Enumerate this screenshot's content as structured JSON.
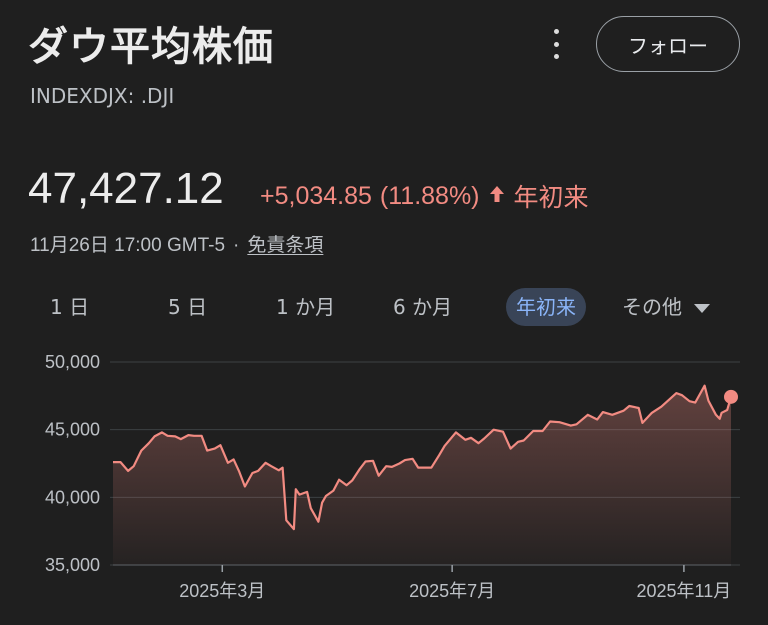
{
  "header": {
    "title": "ダウ平均株価",
    "ticker": "INDEXDJX: .DJI",
    "follow_label": "フォロー",
    "more_icon": "more-vert-icon"
  },
  "quote": {
    "price": "47,427.12",
    "change": "+5,034.85",
    "change_percent": "(11.88%)",
    "change_arrow": "↑",
    "period": "年初来",
    "timestamp": "11月26日 17:00 GMT-5",
    "separator": "·",
    "disclaimer": "免責条項",
    "positive_color": "#f28b82"
  },
  "ranges": {
    "items": [
      "1 日",
      "5 日",
      "1 か月",
      "6 か月",
      "年初来",
      "その他"
    ],
    "selected": "年初来"
  },
  "chart_data": {
    "type": "area",
    "ylim": [
      35000,
      50000
    ],
    "yticks": [
      "50,000",
      "45,000",
      "40,000",
      "35,000"
    ],
    "ytick_values": [
      50000,
      45000,
      40000,
      35000
    ],
    "xticks": [
      "2025年3月",
      "2025年7月",
      "2025年11月"
    ],
    "xtick_dates": [
      "2025-03-01",
      "2025-07-01",
      "2025-11-01"
    ],
    "x_range": [
      "2025-01-02",
      "2025-11-26"
    ],
    "line_color": "#f28b82",
    "series": [
      {
        "points": [
          [
            "2025-01-02",
            42600
          ],
          [
            "2025-01-06",
            42600
          ],
          [
            "2025-01-10",
            41950
          ],
          [
            "2025-01-13",
            42300
          ],
          [
            "2025-01-17",
            43450
          ],
          [
            "2025-01-21",
            44000
          ],
          [
            "2025-01-24",
            44500
          ],
          [
            "2025-01-28",
            44800
          ],
          [
            "2025-01-31",
            44550
          ],
          [
            "2025-02-04",
            44500
          ],
          [
            "2025-02-07",
            44300
          ],
          [
            "2025-02-11",
            44600
          ],
          [
            "2025-02-14",
            44550
          ],
          [
            "2025-02-18",
            44550
          ],
          [
            "2025-02-21",
            43450
          ],
          [
            "2025-02-25",
            43600
          ],
          [
            "2025-02-28",
            43850
          ],
          [
            "2025-03-04",
            42550
          ],
          [
            "2025-03-07",
            42800
          ],
          [
            "2025-03-10",
            41900
          ],
          [
            "2025-03-13",
            40800
          ],
          [
            "2025-03-17",
            41800
          ],
          [
            "2025-03-20",
            41950
          ],
          [
            "2025-03-24",
            42550
          ],
          [
            "2025-03-27",
            42300
          ],
          [
            "2025-03-31",
            42000
          ],
          [
            "2025-04-02",
            42200
          ],
          [
            "2025-04-04",
            38300
          ],
          [
            "2025-04-08",
            37650
          ],
          [
            "2025-04-09",
            40600
          ],
          [
            "2025-04-11",
            40200
          ],
          [
            "2025-04-15",
            40400
          ],
          [
            "2025-04-17",
            39200
          ],
          [
            "2025-04-21",
            38200
          ],
          [
            "2025-04-23",
            39600
          ],
          [
            "2025-04-25",
            40100
          ],
          [
            "2025-04-29",
            40500
          ],
          [
            "2025-05-02",
            41300
          ],
          [
            "2025-05-06",
            40900
          ],
          [
            "2025-05-09",
            41250
          ],
          [
            "2025-05-13",
            42100
          ],
          [
            "2025-05-16",
            42650
          ],
          [
            "2025-05-20",
            42700
          ],
          [
            "2025-05-23",
            41600
          ],
          [
            "2025-05-27",
            42300
          ],
          [
            "2025-05-30",
            42250
          ],
          [
            "2025-06-03",
            42500
          ],
          [
            "2025-06-06",
            42750
          ],
          [
            "2025-06-10",
            42850
          ],
          [
            "2025-06-13",
            42200
          ],
          [
            "2025-06-17",
            42200
          ],
          [
            "2025-06-20",
            42200
          ],
          [
            "2025-06-24",
            43100
          ],
          [
            "2025-06-27",
            43800
          ],
          [
            "2025-07-03",
            44800
          ],
          [
            "2025-07-08",
            44250
          ],
          [
            "2025-07-11",
            44400
          ],
          [
            "2025-07-15",
            44000
          ],
          [
            "2025-07-18",
            44350
          ],
          [
            "2025-07-23",
            45000
          ],
          [
            "2025-07-28",
            44850
          ],
          [
            "2025-08-01",
            43600
          ],
          [
            "2025-08-05",
            44100
          ],
          [
            "2025-08-08",
            44200
          ],
          [
            "2025-08-13",
            44900
          ],
          [
            "2025-08-18",
            44900
          ],
          [
            "2025-08-22",
            45600
          ],
          [
            "2025-08-27",
            45550
          ],
          [
            "2025-09-02",
            45300
          ],
          [
            "2025-09-05",
            45400
          ],
          [
            "2025-09-11",
            46100
          ],
          [
            "2025-09-16",
            45750
          ],
          [
            "2025-09-19",
            46300
          ],
          [
            "2025-09-24",
            46100
          ],
          [
            "2025-09-30",
            46400
          ],
          [
            "2025-10-03",
            46750
          ],
          [
            "2025-10-08",
            46600
          ],
          [
            "2025-10-10",
            45500
          ],
          [
            "2025-10-15",
            46250
          ],
          [
            "2025-10-20",
            46700
          ],
          [
            "2025-10-24",
            47200
          ],
          [
            "2025-10-28",
            47700
          ],
          [
            "2025-10-31",
            47550
          ],
          [
            "2025-11-04",
            47100
          ],
          [
            "2025-11-07",
            47000
          ],
          [
            "2025-11-12",
            48250
          ],
          [
            "2025-11-14",
            47150
          ],
          [
            "2025-11-18",
            46100
          ],
          [
            "2025-11-20",
            45800
          ],
          [
            "2025-11-21",
            46250
          ],
          [
            "2025-11-24",
            46450
          ],
          [
            "2025-11-26",
            47427.12
          ]
        ]
      }
    ],
    "last_point_marker": true,
    "grid": "horizontal"
  }
}
